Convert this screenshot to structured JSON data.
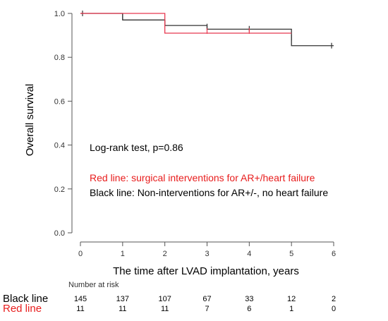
{
  "chart_data": {
    "type": "line",
    "subtype": "kaplan-meier",
    "ylabel": "Overall survival",
    "xlabel": "The time after LVAD implantation, years",
    "xlim": [
      0,
      6
    ],
    "ylim": [
      0.0,
      1.0
    ],
    "x_ticks": [
      "0",
      "1",
      "2",
      "3",
      "4",
      "5",
      "6"
    ],
    "y_ticks": [
      "0.0",
      "0.2",
      "0.4",
      "0.6",
      "0.8",
      "1.0"
    ],
    "grid": false,
    "series": [
      {
        "name": "Black line",
        "color": "#333333",
        "steps": [
          [
            0,
            1.0
          ],
          [
            1.0,
            0.97
          ],
          [
            2.0,
            0.945
          ],
          [
            3.0,
            0.928
          ],
          [
            5.0,
            0.853
          ],
          [
            6.0,
            0.853
          ]
        ],
        "censor_marks": [
          [
            0.05,
            1.0
          ],
          [
            1.0,
            0.985
          ],
          [
            2.0,
            0.955
          ],
          [
            3.0,
            0.94
          ],
          [
            4.0,
            0.93
          ],
          [
            5.0,
            0.89
          ],
          [
            5.95,
            0.853
          ]
        ]
      },
      {
        "name": "Red line",
        "color": "#e8384f",
        "steps": [
          [
            0,
            1.0
          ],
          [
            2.0,
            0.91
          ],
          [
            5.0,
            0.91
          ]
        ],
        "censor_marks": [
          [
            3.0,
            0.92
          ],
          [
            4.0,
            0.92
          ]
        ]
      }
    ],
    "annotations": {
      "test": "Log-rank test, p=0.86",
      "red_line": "Red line: surgical interventions for AR+/heart failure",
      "black_line": "Black line: Non-interventions for AR+/-, no heart failure"
    },
    "risk_table": {
      "title": "Number at risk",
      "rows": [
        {
          "label": "Black line",
          "color": "#000000",
          "values": [
            "145",
            "137",
            "107",
            "67",
            "33",
            "12",
            "2"
          ]
        },
        {
          "label": "Red line",
          "color": "#e81c1c",
          "values": [
            "11",
            "11",
            "11",
            "7",
            "6",
            "1",
            "0"
          ]
        }
      ]
    }
  }
}
